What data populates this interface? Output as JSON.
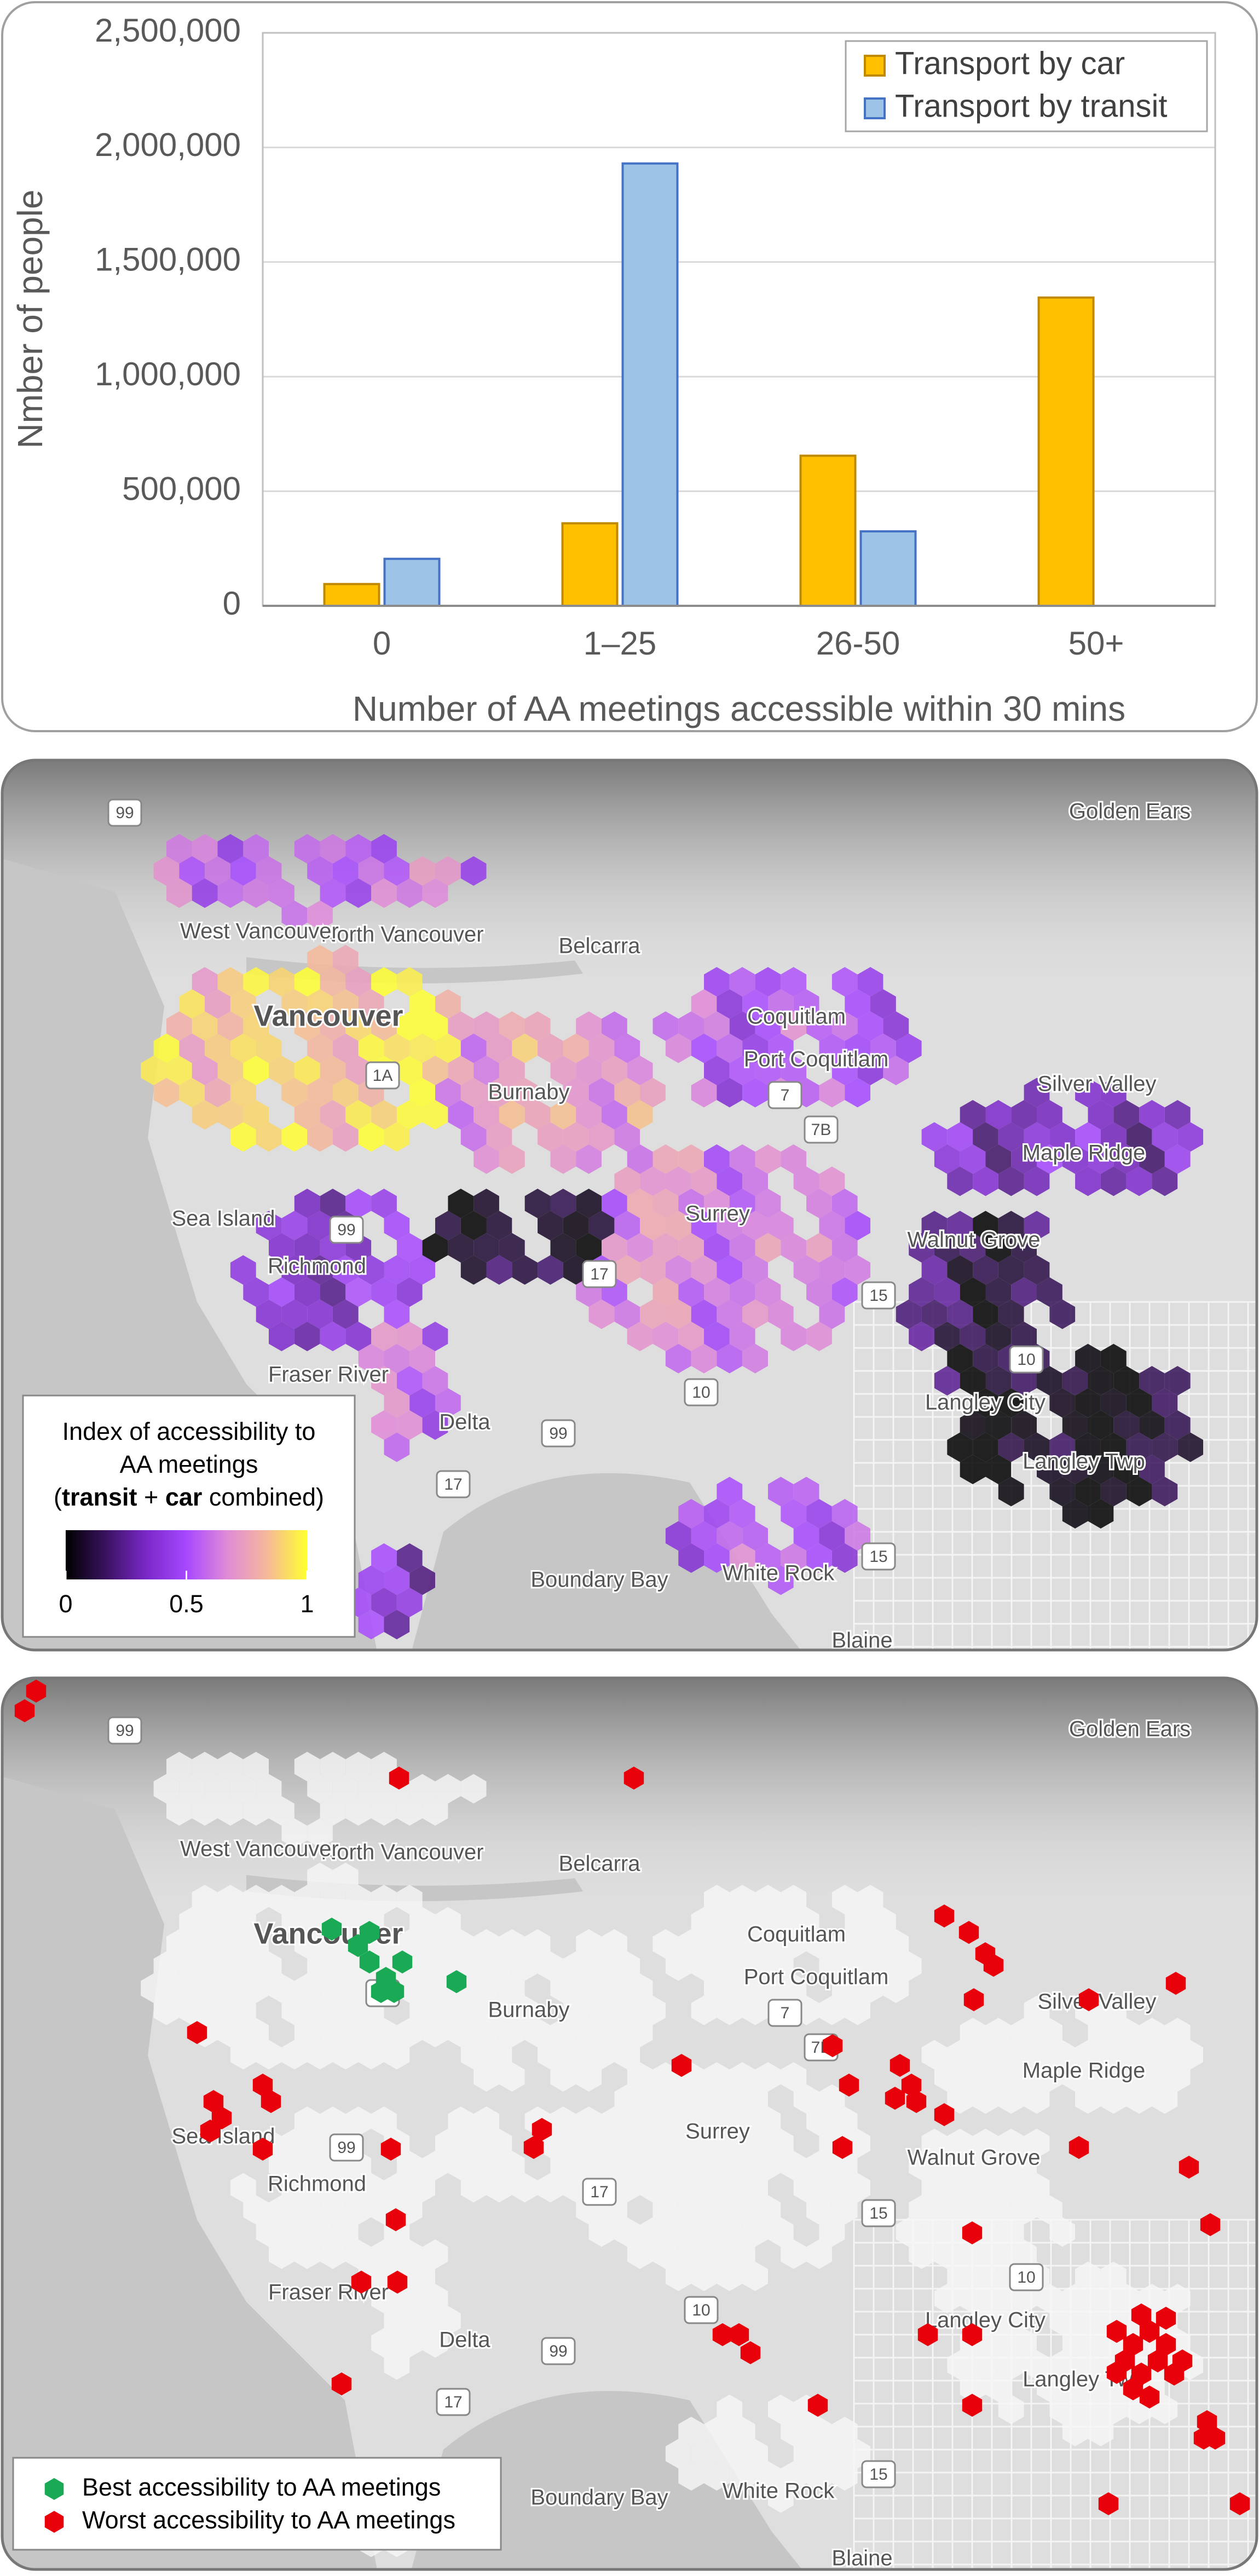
{
  "chart_data": {
    "type": "bar",
    "x_label": "Number of AA meetings accessible within 30 mins",
    "y_label": "Nmber of people",
    "categories": [
      "0",
      "1–25",
      "26-50",
      "50+"
    ],
    "series": [
      {
        "name": "Transport by car",
        "color": "#ffc000",
        "edge": "#c08a00",
        "values": [
          95000,
          360000,
          655000,
          1345000
        ]
      },
      {
        "name": "Transport by transit",
        "color": "#9dc3e6",
        "edge": "#4472c4",
        "values": [
          205000,
          1930000,
          325000,
          0
        ]
      }
    ],
    "ylim": [
      0,
      2500000
    ],
    "yticks": [
      0,
      {
        "value": 500000,
        "label": "500,000"
      },
      {
        "value": 1000000,
        "label": "1,000,000"
      },
      {
        "value": 1500000,
        "label": "1,500,000"
      },
      {
        "value": 2000000,
        "label": "2,000,000"
      },
      {
        "value": 2500000,
        "label": "2,500,000"
      }
    ],
    "grid": true,
    "legend": "upper right"
  },
  "places": [
    "Vancouver",
    "North Vancouver",
    "West Vancouver",
    "Burnaby",
    "Coquitlam",
    "Port Coquitlam",
    "Surrey",
    "Richmond",
    "Sea Island",
    "Delta",
    "Langley City",
    "Langley Twp",
    "Maple Ridge",
    "Silver Valley",
    "Walnut Grove",
    "White Rock",
    "Boundary Bay",
    "Fraser River",
    "Golden Ears",
    "Belcarra",
    "Blaine"
  ],
  "shields": [
    "99",
    "1A",
    "99",
    "17",
    "15",
    "10",
    "99",
    "17",
    "15",
    "7",
    "7B",
    "10"
  ],
  "index_map": {
    "legend": {
      "title_lines": [
        "Index of accessibility to",
        "AA meetings"
      ],
      "title_parts": [
        {
          "text": "(",
          "bold": false
        },
        {
          "text": "transit",
          "bold": true
        },
        {
          "text": " + ",
          "bold": false
        },
        {
          "text": "car",
          "bold": true
        },
        {
          "text": " combined)",
          "bold": false
        }
      ],
      "clim": [
        0,
        1
      ],
      "cticks": [
        0,
        0.5,
        1
      ],
      "colormap": [
        "#000000",
        "#3a1260",
        "#7a28c8",
        "#a648ff",
        "#e08ad8",
        "#f5b89a",
        "#ffff30"
      ]
    }
  },
  "extremes_map": {
    "legend": {
      "items": [
        {
          "label": "Best accessibility to AA meetings",
          "color": "#1aaa55"
        },
        {
          "label": "Worst accessibility to AA meetings",
          "color": "#e8000b"
        }
      ]
    }
  }
}
